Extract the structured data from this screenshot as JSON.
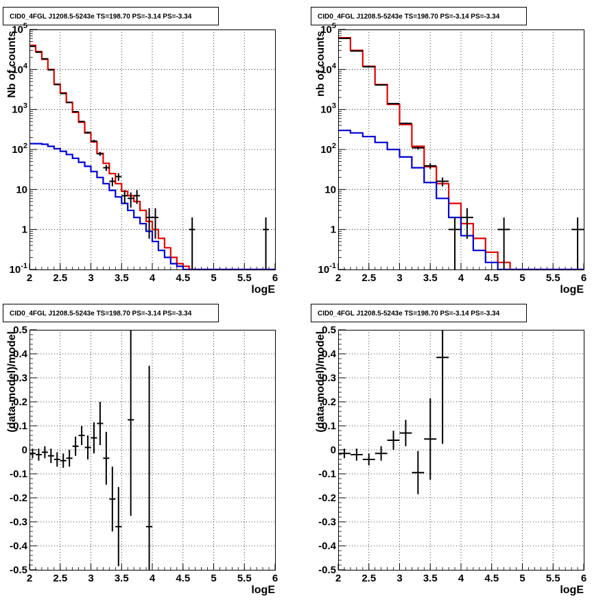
{
  "colors": {
    "data": "#000000",
    "total_model": "#e00000",
    "source_model": "#0000d0",
    "grid": "#000000"
  },
  "chart_data": [
    {
      "type": "line",
      "title": "CID0_4FGL J1208.5-5243e TS=198.70 PS=-3.14 PS=-3.34",
      "xlabel": "logE",
      "ylabel": "Nb of counts",
      "xlim": [
        2,
        6
      ],
      "ylim": [
        0.1,
        100000
      ],
      "ylog": true,
      "grid": true,
      "xticks": [
        "2",
        "2.5",
        "3",
        "3.5",
        "4",
        "4.5",
        "5",
        "5.5",
        "6"
      ],
      "yticks": [
        "10^-1",
        "1",
        "10",
        "10^2",
        "10^3",
        "10^4",
        "10^5"
      ],
      "bin_edges": [
        2.0,
        2.1,
        2.2,
        2.3,
        2.4,
        2.5,
        2.6,
        2.7,
        2.8,
        2.9,
        3.0,
        3.1,
        3.2,
        3.3,
        3.4,
        3.5,
        3.6,
        3.7,
        3.8,
        3.9,
        4.0,
        4.1,
        4.2,
        4.3,
        4.4,
        4.5,
        4.6,
        4.7,
        4.8,
        4.9,
        5.0,
        5.1,
        5.2,
        5.3,
        5.4,
        5.5,
        5.6,
        5.7,
        5.8,
        5.9,
        6.0
      ],
      "series": [
        {
          "color": "#e00000",
          "values": [
            40000,
            28000,
            18000,
            10000,
            4300,
            2600,
            1500,
            850,
            480,
            260,
            155,
            80,
            45,
            25,
            14,
            9,
            7,
            5,
            3,
            1.6,
            1.0,
            0.6,
            0.35,
            0.2,
            0.14,
            0.12,
            0.1,
            0.1,
            0.1,
            0.1,
            0.1,
            0.1,
            0.1,
            0.1,
            0.1,
            0.1,
            0.1,
            0.1,
            0.1,
            0.1
          ]
        },
        {
          "color": "#0000d0",
          "values": [
            140,
            140,
            135,
            120,
            105,
            90,
            75,
            60,
            48,
            38,
            28,
            20,
            14,
            9.5,
            6.5,
            4.5,
            3,
            2,
            1.4,
            0.9,
            0.5,
            0.3,
            0.2,
            0.14,
            0.12,
            0.1,
            0.1,
            0.1,
            0.1,
            0.1,
            0.1,
            0.1,
            0.1,
            0.1,
            0.1,
            0.1,
            0.1,
            0.1,
            0.1,
            0.1
          ]
        }
      ],
      "points": [
        {
          "x": 2.05,
          "y": 38000
        },
        {
          "x": 2.15,
          "y": 27000
        },
        {
          "x": 2.25,
          "y": 18500
        },
        {
          "x": 2.35,
          "y": 9800
        },
        {
          "x": 2.45,
          "y": 4200
        },
        {
          "x": 2.55,
          "y": 2500
        },
        {
          "x": 2.65,
          "y": 1500
        },
        {
          "x": 2.75,
          "y": 880
        },
        {
          "x": 2.85,
          "y": 500
        },
        {
          "x": 2.95,
          "y": 265
        },
        {
          "x": 3.05,
          "y": 162
        },
        {
          "x": 3.15,
          "y": 78
        },
        {
          "x": 3.25,
          "y": 35
        },
        {
          "x": 3.35,
          "y": 16
        },
        {
          "x": 3.45,
          "y": 21
        },
        {
          "x": 3.55,
          "y": 7
        },
        {
          "x": 3.65,
          "y": 6
        },
        {
          "x": 3.75,
          "y": 7
        },
        {
          "x": 3.95,
          "y": 2
        },
        {
          "x": 4.05,
          "y": 2
        },
        {
          "x": 4.65,
          "y": 1
        },
        {
          "x": 5.85,
          "y": 1
        }
      ]
    },
    {
      "type": "line",
      "title": "CID0_4FGL J1208.5-5243e TS=198.70 PS=-3.14 PS=-3.34",
      "xlabel": "logE",
      "ylabel": "nb of counts",
      "xlim": [
        2,
        6
      ],
      "ylim": [
        0.1,
        100000
      ],
      "ylog": true,
      "grid": true,
      "xticks": [
        "2",
        "2.5",
        "3",
        "3.5",
        "4",
        "4.5",
        "5",
        "5.5",
        "6"
      ],
      "yticks": [
        "10^-1",
        "1",
        "10",
        "10^2",
        "10^3",
        "10^4",
        "10^5"
      ],
      "bin_edges": [
        2.0,
        2.2,
        2.4,
        2.6,
        2.8,
        3.0,
        3.2,
        3.4,
        3.6,
        3.8,
        4.0,
        4.2,
        4.4,
        4.6,
        4.8,
        5.0,
        5.2,
        5.4,
        5.6,
        5.8,
        6.0
      ],
      "series": [
        {
          "color": "#e00000",
          "values": [
            62000,
            30000,
            12000,
            4200,
            1350,
            420,
            120,
            37,
            14,
            4.5,
            1.4,
            0.6,
            0.27,
            0.15,
            0.1,
            0.1,
            0.1,
            0.1,
            0.1,
            0.1
          ]
        },
        {
          "color": "#0000d0",
          "values": [
            300,
            260,
            210,
            150,
            100,
            65,
            35,
            15,
            6,
            2,
            0.7,
            0.3,
            0.15,
            0.1,
            0.1,
            0.1,
            0.1,
            0.1,
            0.1,
            0.1
          ]
        }
      ],
      "points": [
        {
          "x": 2.1,
          "y": 60000
        },
        {
          "x": 2.3,
          "y": 29000
        },
        {
          "x": 2.5,
          "y": 11700
        },
        {
          "x": 2.7,
          "y": 4100
        },
        {
          "x": 2.9,
          "y": 1400
        },
        {
          "x": 3.1,
          "y": 450
        },
        {
          "x": 3.3,
          "y": 110
        },
        {
          "x": 3.5,
          "y": 39
        },
        {
          "x": 3.7,
          "y": 16
        },
        {
          "x": 3.9,
          "y": 1
        },
        {
          "x": 4.1,
          "y": 2
        },
        {
          "x": 4.7,
          "y": 1
        },
        {
          "x": 5.9,
          "y": 1
        }
      ]
    },
    {
      "type": "scatter",
      "title": "CID0_4FGL J1208.5-5243e TS=198.70 PS=-3.14 PS=-3.34",
      "xlabel": "logE",
      "ylabel": "(data-model)/model",
      "xlim": [
        2,
        6
      ],
      "ylim": [
        -0.5,
        0.5
      ],
      "grid": true,
      "xticks": [
        "2",
        "2.5",
        "3",
        "3.5",
        "4",
        "4.5",
        "5",
        "5.5",
        "6"
      ],
      "yticks": [
        "-0.5",
        "-0.4",
        "-0.3",
        "-0.2",
        "-0.1",
        "0",
        "0.1",
        "0.2",
        "0.3",
        "0.4",
        "0.5"
      ],
      "x_halfwidth": 0.05,
      "points": [
        {
          "x": 2.05,
          "y": -0.015,
          "err": 0.02
        },
        {
          "x": 2.15,
          "y": -0.02,
          "err": 0.025
        },
        {
          "x": 2.25,
          "y": -0.01,
          "err": 0.025
        },
        {
          "x": 2.35,
          "y": -0.025,
          "err": 0.03
        },
        {
          "x": 2.45,
          "y": -0.04,
          "err": 0.03
        },
        {
          "x": 2.55,
          "y": -0.045,
          "err": 0.03
        },
        {
          "x": 2.65,
          "y": -0.035,
          "err": 0.035
        },
        {
          "x": 2.75,
          "y": 0.015,
          "err": 0.04
        },
        {
          "x": 2.85,
          "y": 0.06,
          "err": 0.04
        },
        {
          "x": 2.95,
          "y": 0.01,
          "err": 0.05
        },
        {
          "x": 3.05,
          "y": 0.05,
          "err": 0.065
        },
        {
          "x": 3.15,
          "y": 0.11,
          "err": 0.09
        },
        {
          "x": 3.25,
          "y": -0.035,
          "err": 0.11
        },
        {
          "x": 3.35,
          "y": -0.205,
          "err": 0.135
        },
        {
          "x": 3.45,
          "y": -0.32,
          "err": 0.165
        },
        {
          "x": 3.65,
          "y": 0.125,
          "err": 0.4
        },
        {
          "x": 3.95,
          "y": -0.32,
          "err": 0.67
        }
      ]
    },
    {
      "type": "scatter",
      "title": "CID0_4FGL J1208.5-5243e TS=198.70 PS=-3.14 PS=-3.34",
      "xlabel": "logE",
      "ylabel": "(data-model)/model",
      "xlim": [
        2,
        6
      ],
      "ylim": [
        -0.5,
        0.5
      ],
      "grid": true,
      "xticks": [
        "2",
        "2.5",
        "3",
        "3.5",
        "4",
        "4.5",
        "5",
        "5.5",
        "6"
      ],
      "yticks": [
        "-0.5",
        "-0.4",
        "-0.3",
        "-0.2",
        "-0.1",
        "0",
        "0.1",
        "0.2",
        "0.3",
        "0.4",
        "0.5"
      ],
      "x_halfwidth": 0.1,
      "points": [
        {
          "x": 2.1,
          "y": -0.015,
          "err": 0.02
        },
        {
          "x": 2.3,
          "y": -0.02,
          "err": 0.025
        },
        {
          "x": 2.5,
          "y": -0.04,
          "err": 0.025
        },
        {
          "x": 2.7,
          "y": -0.015,
          "err": 0.03
        },
        {
          "x": 2.9,
          "y": 0.04,
          "err": 0.04
        },
        {
          "x": 3.1,
          "y": 0.07,
          "err": 0.055
        },
        {
          "x": 3.3,
          "y": -0.095,
          "err": 0.09
        },
        {
          "x": 3.5,
          "y": 0.045,
          "err": 0.17
        },
        {
          "x": 3.7,
          "y": 0.385,
          "err": 0.36
        }
      ]
    }
  ]
}
